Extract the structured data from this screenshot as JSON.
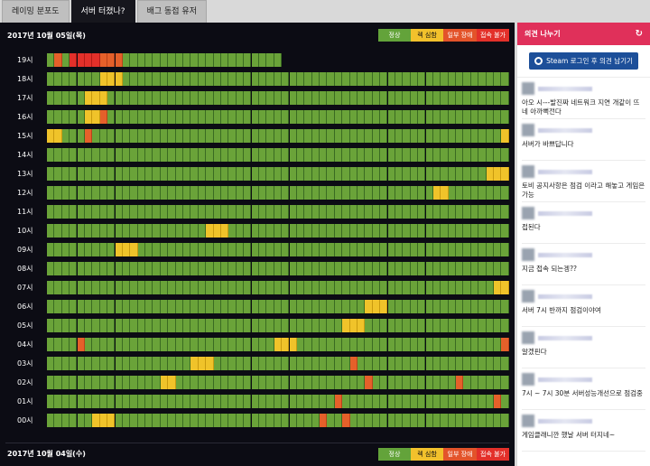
{
  "tabs": [
    {
      "label": "레이밍 분포도",
      "active": false
    },
    {
      "label": "서버 터졌나?",
      "active": true
    },
    {
      "label": "배그 동접 유저",
      "active": false
    }
  ],
  "days": [
    {
      "label": "2017년 10월 05일(목)"
    },
    {
      "label": "2017년 10월 04일(수)"
    }
  ],
  "legend": {
    "ok": "정상",
    "slow": "렉 심함",
    "partial": "일부 장애",
    "down": "접속 불가"
  },
  "colors": {
    "ok": "#6aa339",
    "slow": "#f0c32a",
    "partial": "#e5602a",
    "down": "#e3302a",
    "accent": "#e0305a",
    "steam": "#1d4f99"
  },
  "status_rows": [
    {
      "hour": "19시",
      "cells": "GOGRRRROOOGGGGGGGGGGGGGGGGGGGGG"
    },
    {
      "hour": "18시",
      "cells": "GGGGGGGYYYGGGGGGGGGGGGGGGGGGGGGGGGGGGGGGGGGGGGGGGGGGGGGGGGGGGGGGGGGGGGGGGGGGGGGGGGGGGGGGGGGGGGGGGGGGGGGGGGGGGGGGGGGGGGGGGGGGGGGGGGGGGGGGGGGGGGGGGGGGGGGGGGGGGGGGGGGGGGGGGGGGGGGGGGGGGGGGGGGGGGGGGGGGGGGGGGGGGGGGGGGGGGGGG"
    },
    {
      "hour": "17시",
      "cells": "GGGGGYYYGGGGGGGGGGGGGGGGGGGGGGGGGGGGGGGGGGGGGGGGGGGGGGGGGGGGGG"
    },
    {
      "hour": "16시",
      "cells": "GGGGGYYOGGGGGGGGGGGGGGGGGGGGGGGGGGGGGGGGGGGGGGGGGGGGGGGGGGGGGG"
    },
    {
      "hour": "15시",
      "cells": "YYGGGOGGGGGGGGGGGGGGGGGGGGGGGGGGGGGGGGGGGGGGGGGGGGGGGGGGGGGGYG"
    },
    {
      "hour": "14시",
      "cells": "GGGGGGGGGGGGGGGGGGGGGGGGGGGGGGGGGGGGGGGGGGGGGGGGGGGGGGGGGGGGGY"
    },
    {
      "hour": "13시",
      "cells": "GGGGGGGGGGGGGGGGGGGGGGGGGGGGGGGGGGGGGGGGGGGGGGGGGGGGGGGGGGYYYG"
    },
    {
      "hour": "12시",
      "cells": "GGGGGGGGGGGGGGGGGGGGGGGGGGGGGGGGGGGGGGGGGGGGGGGGGGGYYGGGGGGGGG"
    },
    {
      "hour": "11시",
      "cells": "GGGGGGGGGGGGGGGGGGGGGGGGGGGGGGGGGGGGGGGGGGGGGGGGGGGGGGGGGGGGGG"
    },
    {
      "hour": "10시",
      "cells": "GGGGGGGGGGGGGGGGGGGGGYYYGGGGGGGGGGGGGGGGGGGGGGGGGGGGGGGGGGGGGG"
    },
    {
      "hour": "09시",
      "cells": "GGGGGGGGGYYYGGGGGGGGGGGGGGGGGGGGGGGGGGGGGGGGGGGGGGGGGGGGGGGGGG"
    },
    {
      "hour": "08시",
      "cells": "GGGGGGGGGGGGGGGGGGGGGGGGGGGGGGGGGGGGGGGGGGGGGGGGGGGGGGGGGGGGGG"
    },
    {
      "hour": "07시",
      "cells": "GGGGGGGGGGGGGGGGGGGGGGGGGGGGGGGGGGGGGGGGGGGGGGGGGGGGGGGGGGGYYYG"
    },
    {
      "hour": "06시",
      "cells": "GGGGGGGGGGGGGGGGGGGGGGGGGGGGGGGGGGGGGGGGGGYYYGGGGGGGGGGGGGGGGG"
    },
    {
      "hour": "05시",
      "cells": "GGGGGGGGGGGGGGGGGGGGGGGGGGGGGGGGGGGGGGGYYYGGGGGGGGGGGGGGGGGGGG"
    },
    {
      "hour": "04시",
      "cells": "GGGGOGGGGGGGGGGGGGGGGGGGGGGGGGYYYGGGGGGGGGGGGGGGGGGGGGGGGGGGOG"
    },
    {
      "hour": "03시",
      "cells": "GGGGGGGGGGGGGGGGGGGYYYGGGGGGGGGGGGGGGGGGOGGGGGGGGGGGGGGGGGGGGG"
    },
    {
      "hour": "02시",
      "cells": "GGGGGGGGGGGGGGGYYGGGGGGGGGGGGGGGGGGGGGGGGGOGGGGGGGGGGGOGGGGGGG"
    },
    {
      "hour": "01시",
      "cells": "GGGGGGGGGGGGGGGGGGGGGGGGGGGGGGGGGGGGGGOGGGGGGGGGGGGGGGGGGGGOGG"
    },
    {
      "hour": "00시",
      "cells": "GGGGGGYYYGGGGGGGGGGGGGGGGGGGGGGGGGGGOGGOGGGGGGGGGGGGGGGGGGGGGG"
    }
  ],
  "sidebar": {
    "title": "의견 나누기",
    "login_button": "Steam 로그인 후 의견 남기기",
    "comments": [
      "아오 시---발진짜 네트워크 지연 개같이 뜨네 아까뻑전다",
      "서버가 바쁘답니다",
      "토비 공지사항은 점검 이라고 해놓고 게임은 가능",
      "접된다",
      "지금 접속 되는겡??",
      "서버 7시 반까지 점검이야여",
      "알겠핀다",
      "7시 ~ 7시 30분 서버성능개선으로 점검중",
      "게임클래니깐 했날 서버 터지네~"
    ]
  }
}
